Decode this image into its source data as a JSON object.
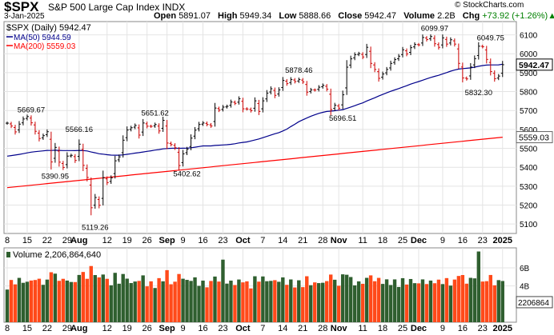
{
  "header": {
    "symbol": "$SPX",
    "name": "S&P 500 Large Cap Index",
    "exchange": "INDX",
    "date": "3-Jan-2025",
    "open_label": "Open",
    "open": "5891.07",
    "high_label": "High",
    "high": "5949.34",
    "low_label": "Low",
    "low": "5888.66",
    "close_label": "Close",
    "close": "5942.47",
    "volume_label": "Volume",
    "volume": "2.2B",
    "chg_label": "Chg",
    "chg": "+73.92 (+1.26%)",
    "chg_arrow": "▲",
    "copyright": "© StockCharts.com"
  },
  "legend": {
    "price": "$SPX (Daily) 5942.47",
    "ma50": "MA(50) 5944.59",
    "ma200": "MA(200) 5559.03",
    "volume": "Volume 2,206,864,640"
  },
  "chart_data": {
    "type": "ohlc",
    "colors": {
      "up": "#000000",
      "down": "#cc0000",
      "ma50": "#00008b",
      "ma200": "#ff0000",
      "vol_up": "#2f5f2f",
      "vol_down": "#ff4a1a",
      "grid": "#e4e4e4"
    },
    "price_axis": {
      "ylim": [
        5050,
        6170
      ],
      "ticks": [
        5100,
        5200,
        5300,
        5400,
        5500,
        5600,
        5700,
        5800,
        5900,
        6000,
        6100
      ]
    },
    "volume_axis": {
      "ylim": [
        0,
        8.2
      ],
      "unit": "B",
      "ticks": [
        4,
        6
      ],
      "tick_labels": [
        "4B",
        "6B"
      ]
    },
    "x_ticks": [
      {
        "label": "8",
        "i": 0
      },
      {
        "label": "15",
        "i": 5
      },
      {
        "label": "22",
        "i": 10
      },
      {
        "label": "29",
        "i": 15
      },
      {
        "label": "Aug",
        "i": 18,
        "bold": true
      },
      {
        "label": "12",
        "i": 25
      },
      {
        "label": "19",
        "i": 30
      },
      {
        "label": "26",
        "i": 35
      },
      {
        "label": "Sep",
        "i": 40,
        "bold": true
      },
      {
        "label": "9",
        "i": 44
      },
      {
        "label": "16",
        "i": 49
      },
      {
        "label": "23",
        "i": 54
      },
      {
        "label": "Oct",
        "i": 59,
        "bold": true
      },
      {
        "label": "7",
        "i": 64
      },
      {
        "label": "14",
        "i": 69
      },
      {
        "label": "21",
        "i": 74
      },
      {
        "label": "28",
        "i": 79
      },
      {
        "label": "Nov",
        "i": 83,
        "bold": true
      },
      {
        "label": "11",
        "i": 89
      },
      {
        "label": "18",
        "i": 94
      },
      {
        "label": "25",
        "i": 99
      },
      {
        "label": "Dec",
        "i": 103,
        "bold": true
      },
      {
        "label": "9",
        "i": 109
      },
      {
        "label": "16",
        "i": 114
      },
      {
        "label": "23",
        "i": 119
      },
      {
        "label": "2025",
        "i": 124,
        "bold": true
      }
    ],
    "price_labels": [
      {
        "text": "5669.67",
        "i": 6,
        "v": 5669.67,
        "pos": "above"
      },
      {
        "text": "5390.95",
        "i": 12,
        "v": 5390.95,
        "pos": "below"
      },
      {
        "text": "5566.16",
        "i": 18,
        "v": 5566.16,
        "pos": "above"
      },
      {
        "text": "5119.26",
        "i": 22,
        "v": 5119.26,
        "pos": "below"
      },
      {
        "text": "5651.62",
        "i": 37,
        "v": 5651.62,
        "pos": "above"
      },
      {
        "text": "5402.62",
        "i": 45,
        "v": 5402.62,
        "pos": "below"
      },
      {
        "text": "5878.46",
        "i": 73,
        "v": 5878.46,
        "pos": "above"
      },
      {
        "text": "5696.51",
        "i": 84,
        "v": 5696.51,
        "pos": "below"
      },
      {
        "text": "6099.97",
        "i": 107,
        "v": 6099.97,
        "pos": "above"
      },
      {
        "text": "6049.75",
        "i": 121,
        "v": 6049.75,
        "pos": "above"
      },
      {
        "text": "5832.30",
        "i": 118,
        "v": 5832.3,
        "pos": "below"
      }
    ],
    "last_price_badges": [
      {
        "text": "5942.47",
        "v": 5942.47,
        "style": "dark"
      },
      {
        "text": "5559.03",
        "v": 5559.03,
        "style": "light"
      }
    ],
    "last_volume_badge": {
      "text": "2206864",
      "v": 2.21
    },
    "closes": [
      5633,
      5618,
      5587,
      5628,
      5655,
      5668,
      5635,
      5590,
      5552,
      5567,
      5588,
      5428,
      5505,
      5427,
      5399,
      5459,
      5463,
      5436,
      5522,
      5410,
      5346,
      5186,
      5240,
      5199,
      5345,
      5319,
      5344,
      5434,
      5455,
      5543,
      5597,
      5609,
      5621,
      5570,
      5634,
      5617,
      5616,
      5626,
      5592,
      5648,
      5528,
      5520,
      5503,
      5409,
      5471,
      5495,
      5554,
      5596,
      5626,
      5634,
      5626,
      5618,
      5713,
      5702,
      5718,
      5722,
      5745,
      5738,
      5762,
      5709,
      5708,
      5699,
      5751,
      5695,
      5751,
      5792,
      5815,
      5780,
      5809,
      5859,
      5842,
      5864,
      5853,
      5864,
      5851,
      5797,
      5809,
      5808,
      5823,
      5833,
      5813,
      5705,
      5728,
      5712,
      5783,
      5929,
      5973,
      5995,
      6001,
      5983,
      6034,
      5949,
      5917,
      5870,
      5893,
      5917,
      5949,
      5969,
      5987,
      6021,
      5999,
      6032,
      6049,
      6047,
      6086,
      6075,
      6091,
      6053,
      6034,
      6084,
      6051,
      6074,
      6051,
      5949,
      5872,
      5867,
      5930,
      5974,
      6040,
      6037,
      5970,
      5906,
      5868,
      5882,
      5942
    ]
  }
}
